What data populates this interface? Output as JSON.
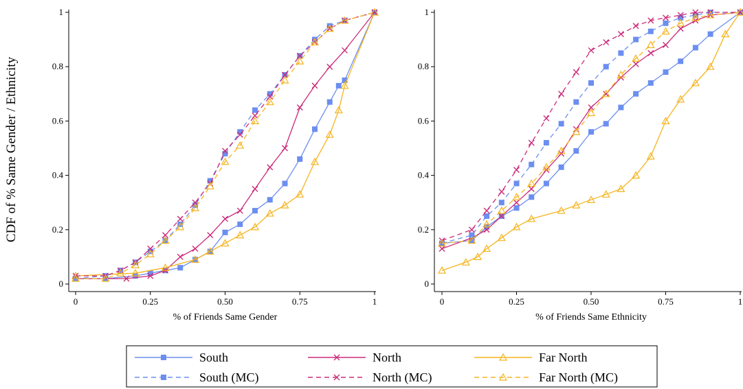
{
  "figure": {
    "ylabel": "CDF of % Same Gender / Ethnicity"
  },
  "legend": {
    "entries": [
      {
        "label": "South",
        "series": "South"
      },
      {
        "label": "North",
        "series": "North"
      },
      {
        "label": "Far North",
        "series": "Far North"
      },
      {
        "label": "South (MC)",
        "series": "South (MC)"
      },
      {
        "label": "North (MC)",
        "series": "North (MC)"
      },
      {
        "label": "Far North (MC)",
        "series": "Far North (MC)"
      }
    ]
  },
  "chart_data": [
    {
      "type": "line",
      "title": "",
      "xlabel": "% of Friends Same Gender",
      "ylabel": "CDF of % Same Gender / Ethnicity",
      "xlim": [
        0,
        1
      ],
      "ylim": [
        0,
        1
      ],
      "xticks": [
        0,
        0.25,
        0.5,
        0.75,
        1
      ],
      "xtick_labels": [
        "0",
        "0.25",
        "0.50",
        "0.75",
        "1"
      ],
      "yticks": [
        0,
        0.2,
        0.4,
        0.6,
        0.8,
        1
      ],
      "ytick_labels": [
        "0",
        "0.2",
        "0.4",
        "0.6",
        "0.8",
        "1"
      ],
      "grid": false,
      "legend_position": "bottom",
      "series": [
        {
          "name": "South",
          "color": "#6b8ef0",
          "marker": "square",
          "dash": "solid",
          "x": [
            0,
            0.1,
            0.2,
            0.25,
            0.3,
            0.35,
            0.4,
            0.45,
            0.5,
            0.55,
            0.6,
            0.65,
            0.7,
            0.75,
            0.8,
            0.85,
            0.88,
            0.9,
            1
          ],
          "y": [
            0.02,
            0.02,
            0.03,
            0.04,
            0.05,
            0.06,
            0.09,
            0.12,
            0.19,
            0.22,
            0.27,
            0.31,
            0.37,
            0.46,
            0.57,
            0.67,
            0.73,
            0.75,
            1
          ]
        },
        {
          "name": "North",
          "color": "#cc2a7a",
          "marker": "x",
          "dash": "solid",
          "x": [
            0,
            0.17,
            0.25,
            0.3,
            0.35,
            0.4,
            0.45,
            0.5,
            0.55,
            0.6,
            0.65,
            0.7,
            0.75,
            0.8,
            0.85,
            0.9,
            1
          ],
          "y": [
            0.02,
            0.02,
            0.03,
            0.05,
            0.1,
            0.13,
            0.18,
            0.24,
            0.27,
            0.35,
            0.43,
            0.5,
            0.65,
            0.73,
            0.8,
            0.86,
            1
          ]
        },
        {
          "name": "Far North",
          "color": "#f5b41e",
          "marker": "triangle",
          "dash": "solid",
          "x": [
            0,
            0.2,
            0.3,
            0.4,
            0.45,
            0.5,
            0.55,
            0.6,
            0.65,
            0.7,
            0.75,
            0.8,
            0.85,
            0.88,
            0.9,
            1
          ],
          "y": [
            0.03,
            0.04,
            0.06,
            0.09,
            0.12,
            0.15,
            0.18,
            0.21,
            0.26,
            0.29,
            0.33,
            0.45,
            0.55,
            0.64,
            0.73,
            1
          ]
        },
        {
          "name": "South (MC)",
          "color": "#6b8ef0",
          "marker": "square",
          "dash": "dash",
          "x": [
            0,
            0.1,
            0.15,
            0.2,
            0.25,
            0.3,
            0.35,
            0.4,
            0.45,
            0.5,
            0.55,
            0.6,
            0.65,
            0.7,
            0.75,
            0.8,
            0.85,
            0.9,
            1
          ],
          "y": [
            0.02,
            0.03,
            0.05,
            0.08,
            0.12,
            0.16,
            0.22,
            0.29,
            0.38,
            0.48,
            0.56,
            0.64,
            0.7,
            0.77,
            0.84,
            0.9,
            0.95,
            0.97,
            1
          ]
        },
        {
          "name": "North (MC)",
          "color": "#cc2a7a",
          "marker": "x",
          "dash": "dash",
          "x": [
            0,
            0.1,
            0.15,
            0.2,
            0.25,
            0.3,
            0.35,
            0.4,
            0.45,
            0.5,
            0.55,
            0.6,
            0.65,
            0.7,
            0.75,
            0.8,
            0.85,
            0.9,
            1
          ],
          "y": [
            0.03,
            0.03,
            0.05,
            0.08,
            0.13,
            0.18,
            0.24,
            0.3,
            0.37,
            0.49,
            0.55,
            0.62,
            0.69,
            0.77,
            0.84,
            0.89,
            0.94,
            0.97,
            1
          ]
        },
        {
          "name": "Far North (MC)",
          "color": "#f5b41e",
          "marker": "triangle",
          "dash": "dash",
          "x": [
            0,
            0.1,
            0.15,
            0.2,
            0.25,
            0.3,
            0.35,
            0.4,
            0.45,
            0.5,
            0.55,
            0.6,
            0.65,
            0.7,
            0.75,
            0.8,
            0.85,
            0.9,
            1
          ],
          "y": [
            0.02,
            0.02,
            0.04,
            0.07,
            0.11,
            0.16,
            0.21,
            0.28,
            0.36,
            0.45,
            0.51,
            0.6,
            0.67,
            0.75,
            0.82,
            0.89,
            0.94,
            0.97,
            1
          ]
        }
      ]
    },
    {
      "type": "line",
      "title": "",
      "xlabel": "% of Friends Same Ethnicity",
      "ylabel": "",
      "xlim": [
        0,
        1
      ],
      "ylim": [
        0,
        1
      ],
      "xticks": [
        0,
        0.25,
        0.5,
        0.75,
        1
      ],
      "xtick_labels": [
        "0",
        "0.25",
        "0.50",
        "0.75",
        "1"
      ],
      "yticks": [
        0,
        0.2,
        0.4,
        0.6,
        0.8,
        1
      ],
      "ytick_labels": [
        "0",
        "0.2",
        "0.4",
        "0.6",
        "0.8",
        "1"
      ],
      "grid": false,
      "legend_position": "bottom",
      "series": [
        {
          "name": "South",
          "color": "#6b8ef0",
          "marker": "square",
          "dash": "solid",
          "x": [
            0,
            0.1,
            0.15,
            0.2,
            0.25,
            0.3,
            0.35,
            0.4,
            0.45,
            0.5,
            0.55,
            0.6,
            0.65,
            0.7,
            0.75,
            0.8,
            0.85,
            0.9,
            1
          ],
          "y": [
            0.15,
            0.16,
            0.21,
            0.25,
            0.28,
            0.32,
            0.37,
            0.43,
            0.49,
            0.56,
            0.59,
            0.65,
            0.7,
            0.74,
            0.78,
            0.82,
            0.87,
            0.92,
            1
          ]
        },
        {
          "name": "North",
          "color": "#cc2a7a",
          "marker": "x",
          "dash": "solid",
          "x": [
            0,
            0.1,
            0.15,
            0.2,
            0.25,
            0.3,
            0.35,
            0.4,
            0.45,
            0.5,
            0.55,
            0.6,
            0.65,
            0.7,
            0.75,
            0.8,
            0.85,
            0.9,
            1
          ],
          "y": [
            0.13,
            0.17,
            0.2,
            0.25,
            0.3,
            0.35,
            0.42,
            0.48,
            0.57,
            0.65,
            0.7,
            0.76,
            0.81,
            0.85,
            0.88,
            0.94,
            0.97,
            0.99,
            1
          ]
        },
        {
          "name": "Far North",
          "color": "#f5b41e",
          "marker": "triangle",
          "dash": "solid",
          "x": [
            0,
            0.08,
            0.12,
            0.15,
            0.2,
            0.25,
            0.3,
            0.4,
            0.45,
            0.5,
            0.55,
            0.6,
            0.65,
            0.7,
            0.75,
            0.8,
            0.85,
            0.9,
            0.95,
            1
          ],
          "y": [
            0.05,
            0.08,
            0.1,
            0.13,
            0.17,
            0.21,
            0.24,
            0.27,
            0.29,
            0.31,
            0.33,
            0.35,
            0.4,
            0.47,
            0.6,
            0.68,
            0.74,
            0.8,
            0.92,
            1
          ]
        },
        {
          "name": "South (MC)",
          "color": "#6b8ef0",
          "marker": "square",
          "dash": "dash",
          "x": [
            0,
            0.1,
            0.15,
            0.2,
            0.25,
            0.3,
            0.35,
            0.4,
            0.45,
            0.5,
            0.55,
            0.6,
            0.65,
            0.7,
            0.75,
            0.8,
            0.85,
            0.9,
            1
          ],
          "y": [
            0.15,
            0.18,
            0.25,
            0.3,
            0.37,
            0.44,
            0.52,
            0.59,
            0.67,
            0.74,
            0.8,
            0.85,
            0.9,
            0.93,
            0.96,
            0.98,
            0.99,
            1,
            1
          ]
        },
        {
          "name": "North (MC)",
          "color": "#cc2a7a",
          "marker": "x",
          "dash": "dash",
          "x": [
            0,
            0.1,
            0.15,
            0.2,
            0.25,
            0.3,
            0.35,
            0.4,
            0.45,
            0.5,
            0.55,
            0.6,
            0.65,
            0.7,
            0.75,
            0.8,
            0.85,
            0.9,
            1
          ],
          "y": [
            0.16,
            0.2,
            0.27,
            0.34,
            0.42,
            0.52,
            0.61,
            0.7,
            0.78,
            0.86,
            0.89,
            0.92,
            0.95,
            0.97,
            0.98,
            0.99,
            1,
            1,
            1
          ]
        },
        {
          "name": "Far North (MC)",
          "color": "#f5b41e",
          "marker": "triangle",
          "dash": "dash",
          "x": [
            0,
            0.1,
            0.15,
            0.2,
            0.25,
            0.3,
            0.35,
            0.4,
            0.45,
            0.5,
            0.55,
            0.6,
            0.65,
            0.7,
            0.75,
            0.8,
            0.85,
            0.9,
            1
          ],
          "y": [
            0.15,
            0.16,
            0.22,
            0.27,
            0.32,
            0.37,
            0.43,
            0.49,
            0.56,
            0.63,
            0.7,
            0.77,
            0.83,
            0.88,
            0.93,
            0.96,
            0.98,
            0.99,
            1
          ]
        }
      ]
    }
  ]
}
